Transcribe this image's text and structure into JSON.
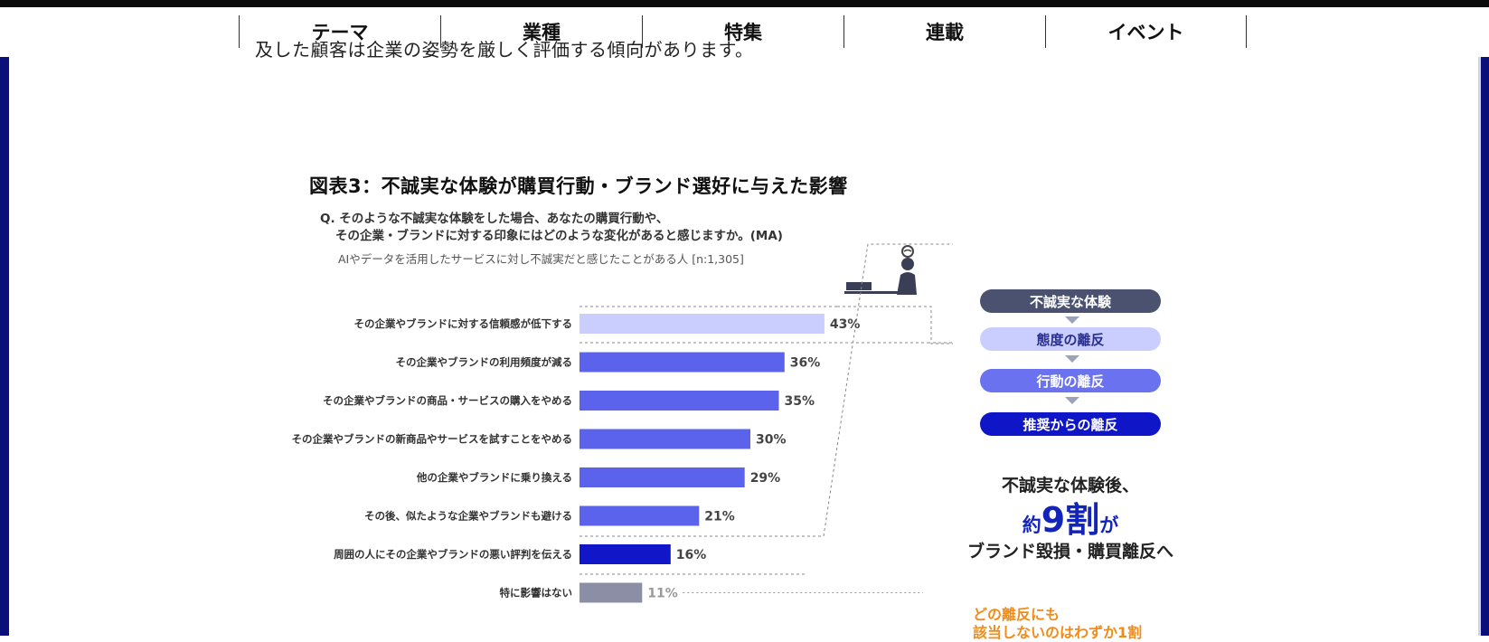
{
  "nav": {
    "items": [
      "テーマ",
      "業種",
      "特集",
      "連載",
      "イベント"
    ]
  },
  "article": {
    "cut_text": "及した顧客は企業の姿勢を厳しく評価する傾向があります。"
  },
  "figure": {
    "title": "図表3：不誠実な体験が購買行動・ブランド選好に与えた影響",
    "question_line1": "Q. そのような不誠実な体験をした場合、あなたの購買行動や、",
    "question_line2": "その企業・ブランドに対する印象にはどのような変化があると感じますか。(MA)",
    "base": "AIやデータを活用したサービスに対し不誠実だと感じたことがある人 [n:1,305]",
    "flow": [
      "不誠実な体験",
      "態度の離反",
      "行動の離反",
      "推奨からの離反"
    ],
    "callout_line1": "不誠実な体験後、",
    "callout_big_prefix": "約",
    "callout_big": "9割",
    "callout_big_suffix": "が",
    "callout_line3": "ブランド毀損・購買離反へ",
    "orange_line1": "どの離反にも",
    "orange_line2": "該当しないのはわずか1割",
    "colors": {
      "trust": "#c9ceff",
      "action": "#5b63ec",
      "recommend": "#1117c9",
      "none": "#8a8fa5"
    }
  },
  "chart_data": {
    "type": "bar",
    "orientation": "horizontal",
    "title": "図表3：不誠実な体験が購買行動・ブランド選好に与えた影響",
    "categories": [
      "その企業やブランドに対する信頼感が低下する",
      "その企業やブランドの利用頻度が減る",
      "その企業やブランドの商品・サービスの購入をやめる",
      "その企業やブランドの新商品やサービスを試すことをやめる",
      "他の企業やブランドに乗り換える",
      "その後、似たような企業やブランドも避ける",
      "周囲の人にその企業やブランドの悪い評判を伝える",
      "特に影響はない"
    ],
    "values": [
      43,
      36,
      35,
      30,
      29,
      21,
      16,
      11
    ],
    "value_labels": [
      "43%",
      "36%",
      "35%",
      "30%",
      "29%",
      "21%",
      "16%",
      "11%"
    ],
    "groups": [
      "trust",
      "action",
      "action",
      "action",
      "action",
      "action",
      "recommend",
      "none"
    ],
    "unit": "%",
    "xlim": [
      0,
      100
    ],
    "grid": false
  }
}
